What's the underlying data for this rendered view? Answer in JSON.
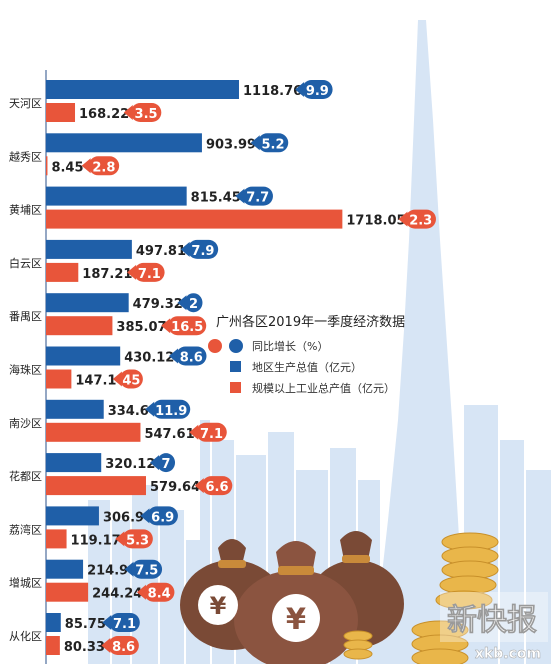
{
  "chart_data": {
    "type": "bar",
    "title": "广州各区2019年一季度经济数据",
    "categories": [
      "天河区",
      "越秀区",
      "黄埔区",
      "白云区",
      "番禺区",
      "海珠区",
      "南沙区",
      "花都区",
      "荔湾区",
      "增城区",
      "从化区"
    ],
    "series": [
      {
        "name": "地区生产总值（亿元）",
        "color": "#1f5fa8",
        "values": [
          1118.76,
          903.99,
          815.45,
          497.81,
          479.32,
          430.12,
          334.6,
          320.12,
          306.9,
          214.9,
          85.75
        ],
        "labels": [
          "1118.76",
          "903.99",
          "815.45",
          "497.81",
          "479.32",
          "430.12",
          "334.6",
          "320.12",
          "306.9",
          "214.9",
          "85.75"
        ],
        "growth": [
          "9.9",
          "5.2",
          "7.7",
          "7.9",
          "2",
          "8.6",
          "11.9",
          "7",
          "6.9",
          "7.5",
          "7.1"
        ]
      },
      {
        "name": "规模以上工业总产值（亿元）",
        "color": "#e8553a",
        "values": [
          168.22,
          8.45,
          1718.05,
          187.21,
          385.07,
          147.1,
          547.61,
          579.64,
          119.17,
          244.24,
          80.33
        ],
        "labels": [
          "168.22",
          "8.45",
          "1718.05",
          "187.21",
          "385.07",
          "147.1",
          "547.61",
          "579.64",
          "119.17",
          "244.24",
          "80.33"
        ],
        "growth": [
          "3.5",
          "2.8",
          "2.3",
          "7.1",
          "16.5",
          "45",
          "7.1",
          "6.6",
          "5.3",
          "8.4",
          "8.6"
        ]
      }
    ],
    "legend": {
      "title": "广州各区2019年一季度经济数据",
      "growth_label": "同比增长（%）",
      "gdp_label": "地区生产总值（亿元）",
      "industry_label": "规模以上工业总产值（亿元）"
    },
    "legend_position": "right-middle",
    "grid": false
  },
  "watermark": {
    "text": "新快报",
    "url_text": "xkb.com"
  },
  "decor": {
    "yuan_symbol": "¥"
  },
  "colors": {
    "gdp": "#1f5fa8",
    "industry": "#e8553a",
    "city": "#d4e3f4",
    "bag": "#7a4a36",
    "coin": "#e9b64a"
  }
}
